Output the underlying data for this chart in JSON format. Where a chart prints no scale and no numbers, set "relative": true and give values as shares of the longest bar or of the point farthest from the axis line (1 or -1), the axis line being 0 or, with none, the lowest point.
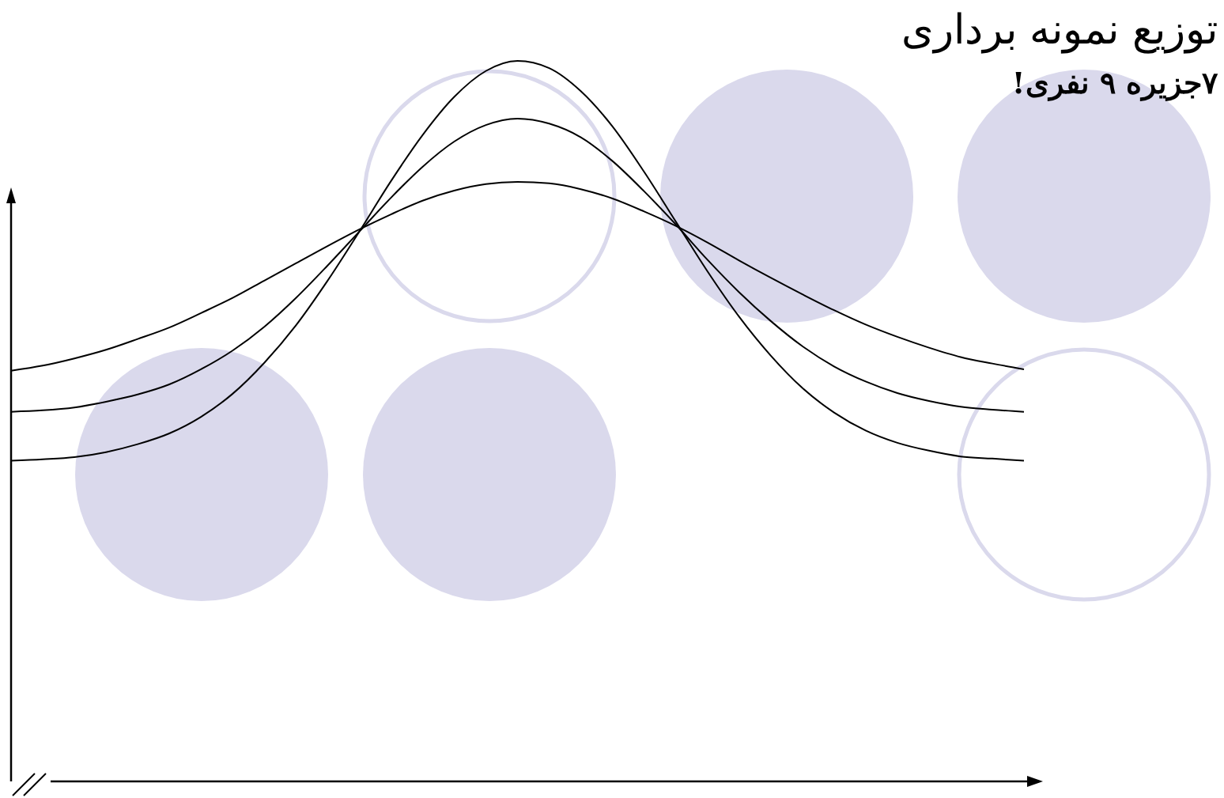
{
  "chart_data": {
    "type": "line",
    "title": "توزیع نمونه برداری",
    "subtitle": "۷جزیره ۹ نفری!",
    "relative": true,
    "categories": [
      null,
      null,
      null,
      null,
      null,
      null,
      null,
      null,
      null,
      null,
      null,
      null,
      null,
      null,
      null,
      null,
      null,
      null,
      null,
      null,
      null,
      null,
      null,
      null,
      null,
      null,
      null,
      null,
      null,
      null,
      null,
      null,
      null
    ],
    "marker": "none",
    "line_style": "solid",
    "series": [
      {
        "color": "#000000",
        "values": [
          0.445,
          0.447,
          0.45,
          0.457,
          0.468,
          0.483,
          0.506,
          0.538,
          0.581,
          0.633,
          0.695,
          0.763,
          0.833,
          0.897,
          0.95,
          0.986,
          1,
          0.99,
          0.958,
          0.909,
          0.846,
          0.777,
          0.708,
          0.645,
          0.591,
          0.546,
          0.512,
          0.487,
          0.47,
          0.459,
          0.451,
          0.448,
          0.445
        ]
      },
      {
        "color": "#000000",
        "values": [
          0.513,
          0.515,
          0.519,
          0.527,
          0.537,
          0.551,
          0.572,
          0.598,
          0.631,
          0.671,
          0.716,
          0.763,
          0.81,
          0.853,
          0.888,
          0.911,
          0.92,
          0.913,
          0.894,
          0.861,
          0.819,
          0.773,
          0.724,
          0.679,
          0.639,
          0.604,
          0.576,
          0.555,
          0.539,
          0.528,
          0.52,
          0.516,
          0.513
        ]
      },
      {
        "color": "#000000",
        "values": [
          0.57,
          0.577,
          0.587,
          0.599,
          0.614,
          0.63,
          0.65,
          0.671,
          0.695,
          0.719,
          0.743,
          0.766,
          0.787,
          0.806,
          0.82,
          0.829,
          0.832,
          0.83,
          0.822,
          0.809,
          0.791,
          0.771,
          0.748,
          0.723,
          0.699,
          0.676,
          0.654,
          0.634,
          0.617,
          0.602,
          0.589,
          0.58,
          0.572
        ]
      }
    ]
  }
}
